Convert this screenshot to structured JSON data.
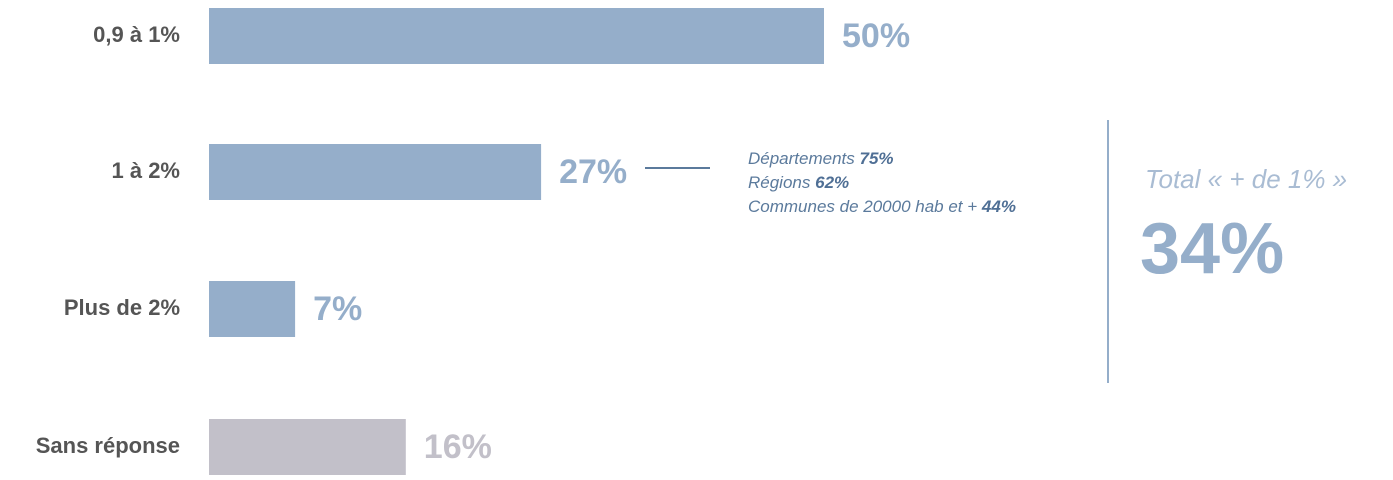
{
  "chart_data": {
    "type": "hbar",
    "categories": [
      "0,9 à 1%",
      "1 à 2%",
      "Plus de 2%",
      "Sans réponse"
    ],
    "values": [
      50,
      27,
      7,
      16
    ],
    "value_labels": [
      "50%",
      "27%",
      "7%",
      "16%"
    ],
    "colors": [
      "#95aeca",
      "#95aeca",
      "#95aeca",
      "#c2c0c9"
    ],
    "breakdown": [
      {
        "name": "Départements",
        "share": "75%"
      },
      {
        "name": "Régions",
        "share": "62%"
      },
      {
        "name": "Communes de 20000 hab et +",
        "share": "44%"
      }
    ],
    "total": {
      "label": "Total « + de 1% »",
      "value": "34%"
    }
  }
}
